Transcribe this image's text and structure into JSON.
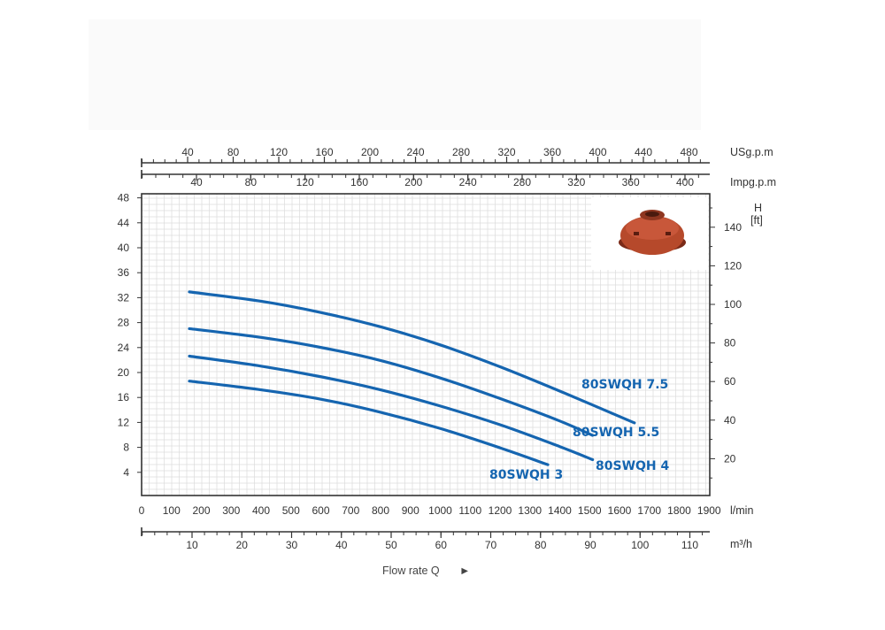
{
  "chart_data": {
    "type": "line",
    "grid": true,
    "colors": {
      "curve": "#1565b0",
      "grid": "#dcdcdc",
      "axis": "#333333",
      "label": "#1565b0"
    },
    "left_axis": {
      "ticks": [
        4,
        8,
        12,
        16,
        20,
        24,
        28,
        32,
        36,
        40,
        44,
        48
      ],
      "ylim": [
        0,
        48
      ]
    },
    "right_axis": {
      "label_top": "H",
      "label_unit": "[ft]",
      "ticks": [
        20,
        40,
        60,
        80,
        100,
        120,
        140
      ]
    },
    "x_lpm": {
      "ticks": [
        0,
        100,
        200,
        300,
        400,
        500,
        600,
        700,
        800,
        900,
        1000,
        1100,
        1200,
        1300,
        1400,
        1500,
        1600,
        1700,
        1800,
        1900
      ],
      "unit": "l/min",
      "xlim": [
        0,
        1900
      ]
    },
    "x_m3h": {
      "ticks": [
        10,
        20,
        30,
        40,
        50,
        60,
        70,
        80,
        90,
        100,
        110
      ],
      "unit": "m³/h"
    },
    "x_usgpm": {
      "ticks": [
        40,
        80,
        120,
        160,
        200,
        240,
        280,
        320,
        360,
        400,
        440,
        480
      ],
      "unit": "USg.p.m"
    },
    "x_impgpm": {
      "ticks": [
        40,
        80,
        120,
        160,
        200,
        240,
        280,
        320,
        360,
        400
      ],
      "unit": "Impg.p.m"
    },
    "flow_label": "Flow rate Q",
    "flow_arrow": "►",
    "series": [
      {
        "name": "80SWQH 7.5",
        "x": [
          160,
          400,
          600,
          800,
          1000,
          1200,
          1400,
          1650
        ],
        "y": [
          32.5,
          31,
          29.2,
          26.9,
          24.0,
          20.5,
          16.6,
          11.5
        ]
      },
      {
        "name": "80SWQH 5.5",
        "x": [
          160,
          400,
          600,
          800,
          1000,
          1200,
          1400,
          1510
        ],
        "y": [
          26.6,
          25.2,
          23.6,
          21.5,
          18.7,
          15.4,
          11.8,
          9.5
        ]
      },
      {
        "name": "80SWQH 4",
        "x": [
          160,
          400,
          600,
          800,
          1000,
          1200,
          1400,
          1510
        ],
        "y": [
          22.2,
          20.6,
          18.9,
          16.8,
          14.2,
          11.2,
          7.7,
          5.6
        ]
      },
      {
        "name": "80SWQH 3",
        "x": [
          160,
          400,
          600,
          800,
          1000,
          1200,
          1360
        ],
        "y": [
          18.2,
          16.8,
          15.3,
          13.2,
          10.6,
          7.5,
          4.8
        ]
      }
    ]
  }
}
